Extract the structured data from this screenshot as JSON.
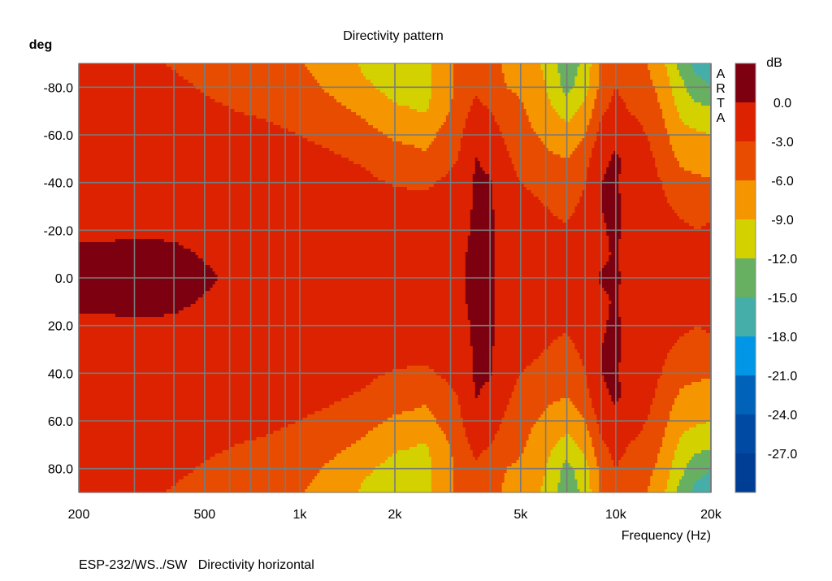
{
  "chart_data": {
    "type": "heatmap",
    "title": "Directivity pattern",
    "ylabel": "deg",
    "xlabel": "Frequency (Hz)",
    "x_scale": "log",
    "xlim": [
      200,
      20000
    ],
    "ylim": [
      -90,
      90
    ],
    "y_inverted": true,
    "grid": true,
    "xticks": [
      {
        "v": 200,
        "label": "200"
      },
      {
        "v": 500,
        "label": "500"
      },
      {
        "v": 1000,
        "label": "1k"
      },
      {
        "v": 2000,
        "label": "2k"
      },
      {
        "v": 5000,
        "label": "5k"
      },
      {
        "v": 10000,
        "label": "10k"
      },
      {
        "v": 20000,
        "label": "20k"
      }
    ],
    "yticks": [
      {
        "v": -80,
        "label": "-80.0"
      },
      {
        "v": -60,
        "label": "-60.0"
      },
      {
        "v": -40,
        "label": "-40.0"
      },
      {
        "v": -20,
        "label": "-20.0"
      },
      {
        "v": 0,
        "label": "0.0"
      },
      {
        "v": 20,
        "label": "20.0"
      },
      {
        "v": 40,
        "label": "40.0"
      },
      {
        "v": 60,
        "label": "60.0"
      },
      {
        "v": 80,
        "label": "80.0"
      }
    ],
    "colorbar": {
      "unit": "dB",
      "levels": [
        "0.0",
        "-3.0",
        "-6.0",
        "-9.0",
        "-12.0",
        "-15.0",
        "-18.0",
        "-21.0",
        "-24.0",
        "-27.0"
      ],
      "colors": [
        "#7d0010",
        "#dc2200",
        "#e84c00",
        "#f59500",
        "#d4d100",
        "#67b062",
        "#45aea8",
        "#0197e6",
        "#0062b8",
        "#004aa3",
        "#003d95"
      ]
    },
    "angles": [
      -90,
      -80,
      -70,
      -60,
      -50,
      -40,
      -30,
      -20,
      -10,
      0,
      10,
      20,
      30,
      40,
      50,
      60,
      70,
      80,
      90
    ],
    "frequencies": [
      200,
      250,
      315,
      400,
      500,
      630,
      800,
      1000,
      1250,
      1600,
      2000,
      2500,
      3150,
      3600,
      4000,
      4500,
      5000,
      6000,
      7000,
      8000,
      9000,
      10000,
      11000,
      12500,
      14000,
      16000,
      18000,
      20000
    ],
    "values_db": [
      [
        -2,
        -2,
        -2,
        -2,
        -2,
        -1.5,
        -1,
        -0.5,
        0.6,
        0.8,
        0.6,
        -0.5,
        -1,
        -1.5,
        -2,
        -2,
        -2,
        -2,
        -2
      ],
      [
        -2.2,
        -2,
        -2,
        -2,
        -2,
        -1.5,
        -1,
        -0.5,
        0.6,
        0.8,
        0.6,
        -0.5,
        -1,
        -1.5,
        -2,
        -2,
        -2,
        -2,
        -2.2
      ],
      [
        -2.5,
        -2.2,
        -2,
        -2,
        -2,
        -1.5,
        -1,
        -0.3,
        0.7,
        0.9,
        0.7,
        -0.3,
        -1,
        -1.5,
        -2,
        -2,
        -2,
        -2.2,
        -2.5
      ],
      [
        -3.2,
        -2.5,
        -2.2,
        -2,
        -2,
        -1.5,
        -1,
        -0.5,
        0.5,
        0.8,
        0.5,
        -0.5,
        -1,
        -1.5,
        -2,
        -2,
        -2.2,
        -2.5,
        -3.2
      ],
      [
        -4,
        -3.2,
        -2.5,
        -2.2,
        -2,
        -1.6,
        -1.3,
        -1,
        -0.2,
        0.4,
        -0.2,
        -1,
        -1.3,
        -1.6,
        -2,
        -2.2,
        -2.5,
        -3.2,
        -4
      ],
      [
        -4.5,
        -3.8,
        -3,
        -2.3,
        -2,
        -1.8,
        -1.5,
        -1.2,
        -0.8,
        -0.5,
        -0.8,
        -1.2,
        -1.5,
        -1.8,
        -2,
        -2.3,
        -3,
        -3.8,
        -4.5
      ],
      [
        -5,
        -4.2,
        -3.3,
        -2.6,
        -2.2,
        -1.8,
        -1.5,
        -1.3,
        -1,
        -0.8,
        -1,
        -1.3,
        -1.5,
        -1.8,
        -2.2,
        -2.6,
        -3.3,
        -4.2,
        -5
      ],
      [
        -5.8,
        -5,
        -3.8,
        -3,
        -2.4,
        -1.8,
        -1.5,
        -1.3,
        -1,
        -1,
        -1,
        -1.3,
        -1.5,
        -1.8,
        -2.4,
        -3,
        -3.8,
        -5,
        -5.8
      ],
      [
        -7,
        -6.5,
        -5,
        -3.5,
        -2.7,
        -2,
        -1.6,
        -1.3,
        -1,
        -1,
        -1,
        -1.3,
        -1.6,
        -2,
        -2.7,
        -3.5,
        -5,
        -6.5,
        -7
      ],
      [
        -9.5,
        -8.5,
        -6.5,
        -5,
        -3.3,
        -2.5,
        -1.8,
        -1.3,
        -1,
        -1,
        -1,
        -1.3,
        -1.8,
        -2.5,
        -3.3,
        -5,
        -6.5,
        -8.5,
        -9.5
      ],
      [
        -10.5,
        -10,
        -8.5,
        -6.5,
        -4.5,
        -3.2,
        -2,
        -1.5,
        -1,
        -1,
        -1,
        -1.5,
        -2,
        -3.2,
        -4.5,
        -6.5,
        -8.5,
        -10,
        -10.5
      ],
      [
        -10,
        -10,
        -9.2,
        -7,
        -5.5,
        -3.5,
        -2.2,
        -1.5,
        -1,
        -1,
        -1,
        -1.5,
        -2.2,
        -3.5,
        -5.5,
        -7,
        -9.2,
        -10,
        -10
      ],
      [
        -5.5,
        -5.5,
        -5,
        -4,
        -3,
        -2,
        -1.5,
        -1,
        -0.5,
        -0.5,
        -0.5,
        -1,
        -1.5,
        -2,
        -3,
        -4,
        -5,
        -5.5,
        -5.5
      ],
      [
        -4,
        -3.5,
        -2,
        -0.5,
        0.1,
        0.3,
        0.4,
        0.5,
        0.5,
        0.6,
        0.5,
        0.5,
        0.4,
        0.3,
        0.1,
        -0.5,
        -2,
        -3.5,
        -4
      ],
      [
        -5,
        -4.5,
        -3,
        -1.5,
        -0.5,
        0.2,
        0.3,
        0.3,
        0.4,
        0.4,
        0.4,
        0.3,
        0.3,
        0.2,
        -0.5,
        -1.5,
        -3,
        -4.5,
        -5
      ],
      [
        -6.5,
        -6,
        -4.5,
        -3.5,
        -2.5,
        -1.8,
        -1.2,
        -1,
        -1,
        -1,
        -1,
        -1,
        -1.2,
        -1.8,
        -2.5,
        -3.5,
        -4.5,
        -6,
        -6.5
      ],
      [
        -7,
        -6.5,
        -5.5,
        -5,
        -4,
        -3,
        -2,
        -1.5,
        -1.5,
        -1.5,
        -1.5,
        -1.5,
        -2,
        -3,
        -4,
        -5,
        -5.5,
        -6.5,
        -7
      ],
      [
        -9.5,
        -9,
        -8,
        -6.5,
        -5.5,
        -4,
        -3,
        -2.5,
        -2,
        -2,
        -2,
        -2.5,
        -3,
        -4,
        -5.5,
        -6.5,
        -8,
        -9,
        -9.5
      ],
      [
        -14,
        -13,
        -10,
        -8,
        -6,
        -4.5,
        -3.5,
        -2.8,
        -2.5,
        -2.5,
        -2.5,
        -2.8,
        -3.5,
        -4.5,
        -6,
        -8,
        -10,
        -13,
        -14
      ],
      [
        -11,
        -10,
        -8,
        -6,
        -4,
        -3,
        -2.5,
        -2,
        -1.5,
        -1.5,
        -1.5,
        -2,
        -2.5,
        -3,
        -4,
        -6,
        -8,
        -10,
        -11
      ],
      [
        -5.5,
        -5,
        -3.5,
        -2,
        -0.5,
        0,
        0,
        -0.3,
        -0.5,
        0.3,
        -0.5,
        -0.3,
        0,
        0,
        -0.5,
        -2,
        -3.5,
        -5,
        -5.5
      ],
      [
        -3.5,
        -3,
        -2,
        -0.5,
        0.3,
        0.6,
        0.6,
        0.5,
        0.3,
        0.5,
        0.3,
        0.5,
        0.6,
        0.6,
        0.3,
        -0.5,
        -2,
        -3,
        -3.5
      ],
      [
        -5,
        -4,
        -3,
        -1.5,
        -0.5,
        -1.5,
        -1.2,
        -1,
        -1,
        -1,
        -1,
        -1,
        -1.2,
        -1.5,
        -0.5,
        -1.5,
        -3,
        -4,
        -5
      ],
      [
        -6,
        -5,
        -4,
        -3,
        -2,
        -2,
        -1.5,
        -0.5,
        -1.5,
        -1.5,
        -1.5,
        -0.5,
        -1.5,
        -2,
        -2,
        -3,
        -4,
        -5,
        -6
      ],
      [
        -8,
        -7,
        -6,
        -5,
        -4,
        -3,
        -2.5,
        -2,
        -2,
        -2,
        -2,
        -2,
        -2.5,
        -3,
        -4,
        -5,
        -6,
        -7,
        -8
      ],
      [
        -13,
        -11,
        -9.5,
        -8,
        -6.5,
        -5,
        -3.5,
        -2.5,
        -2,
        -2,
        -2,
        -2.5,
        -3.5,
        -5,
        -6.5,
        -8,
        -9.5,
        -11,
        -13
      ],
      [
        -16,
        -14,
        -11,
        -8.5,
        -7,
        -5.5,
        -4,
        -3,
        -2.5,
        -2.5,
        -2.5,
        -3,
        -4,
        -5.5,
        -7,
        -8.5,
        -11,
        -14,
        -16
      ],
      [
        -16,
        -15,
        -11,
        -9,
        -7.5,
        -5.5,
        -4,
        -2.5,
        -2,
        -1.5,
        -2,
        -2.5,
        -4,
        -5.5,
        -7.5,
        -9,
        -11,
        -15,
        -16
      ]
    ]
  },
  "watermark": [
    "A",
    "R",
    "T",
    "A"
  ],
  "footer": "ESP-232/WS../SW   Directivity horizontal"
}
